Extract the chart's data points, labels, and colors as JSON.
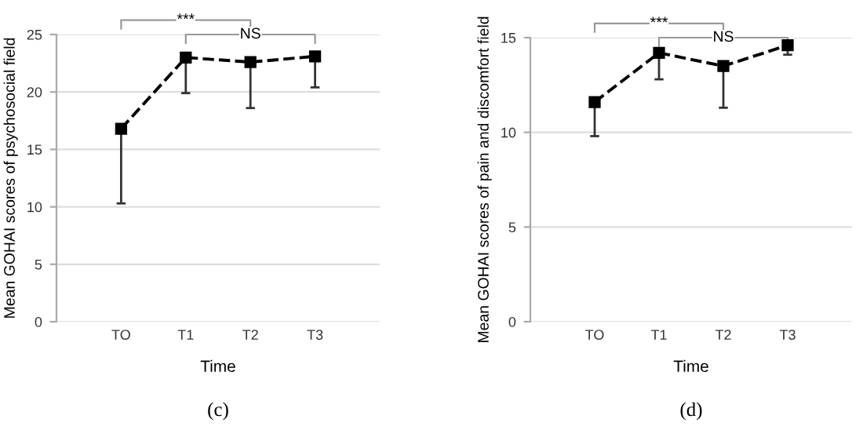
{
  "chart_data": [
    {
      "type": "line",
      "xlabel": "Time",
      "ylabel": "Mean GOHAI scores of psychosocial field",
      "categories": [
        "TO",
        "T1",
        "T2",
        "T3"
      ],
      "series": [
        {
          "color": "#000000",
          "values": [
            16.8,
            23.0,
            22.6,
            23.1
          ],
          "errors": [
            [
              10.3,
              16.8
            ],
            [
              19.9,
              23.0
            ],
            [
              18.6,
              22.6
            ],
            [
              20.4,
              23.1
            ]
          ]
        }
      ],
      "ylim": [
        0,
        25
      ],
      "yticks": [
        0,
        5,
        10,
        15,
        20,
        25
      ],
      "grid": "y",
      "marker": "square",
      "line_style": "dashed",
      "legend": false,
      "annotations": [
        "***",
        "NS",
        "(c)"
      ]
    },
    {
      "type": "line",
      "xlabel": "Time",
      "ylabel": "Mean GOHAI scores of pain and discomfort field",
      "categories": [
        "TO",
        "T1",
        "T2",
        "T3"
      ],
      "series": [
        {
          "color": "#000000",
          "values": [
            11.6,
            14.2,
            13.5,
            14.6
          ],
          "errors": [
            [
              9.8,
              11.6
            ],
            [
              12.8,
              14.2
            ],
            [
              11.3,
              13.5
            ],
            [
              14.1,
              14.6
            ]
          ]
        }
      ],
      "ylim": [
        0,
        15
      ],
      "yticks": [
        0,
        5,
        10,
        15
      ],
      "grid": "y",
      "marker": "square",
      "line_style": "dashed",
      "legend": false,
      "annotations": [
        "***",
        "NS",
        "(d)"
      ]
    }
  ]
}
